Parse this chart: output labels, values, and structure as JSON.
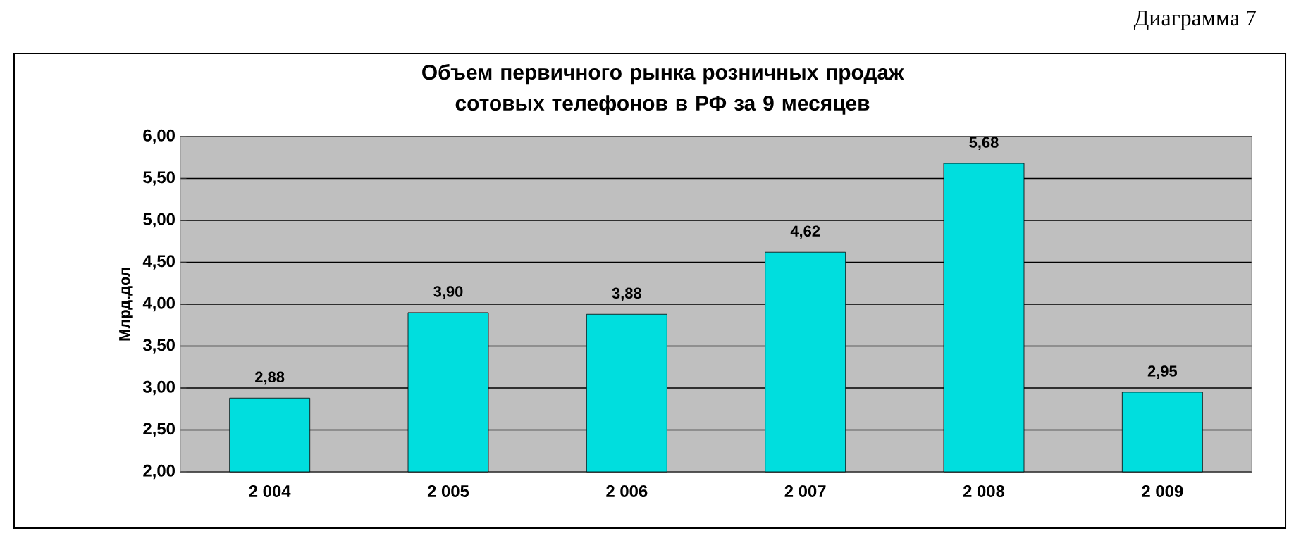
{
  "chart_data": {
    "type": "bar",
    "title": "Объем первичного рынка розничных продаж сотовых телефонов в РФ за 9 месяцев",
    "ylabel": "Млрд.дол",
    "annotations": [
      "Диаграмма 7"
    ],
    "categories": [
      "2 004",
      "2 005",
      "2 006",
      "2 007",
      "2 008",
      "2 009"
    ],
    "values": [
      2.88,
      3.9,
      3.88,
      4.62,
      5.68,
      2.95
    ],
    "value_labels": [
      "2,88",
      "3,90",
      "3,88",
      "4,62",
      "5,68",
      "2,95"
    ],
    "color": "#00dede",
    "ylim": [
      2,
      6
    ],
    "yticks": [
      {
        "value": 2,
        "label": "2,00"
      },
      {
        "value": 2.5,
        "label": "2,50"
      },
      {
        "value": 3,
        "label": "3,00"
      },
      {
        "value": 3.5,
        "label": "3,50"
      },
      {
        "value": 4,
        "label": "4,00"
      },
      {
        "value": 4.5,
        "label": "4,50"
      },
      {
        "value": 5,
        "label": "5,00"
      },
      {
        "value": 5.5,
        "label": "5,50"
      },
      {
        "value": 6,
        "label": "6,00"
      }
    ],
    "grid": "y"
  }
}
